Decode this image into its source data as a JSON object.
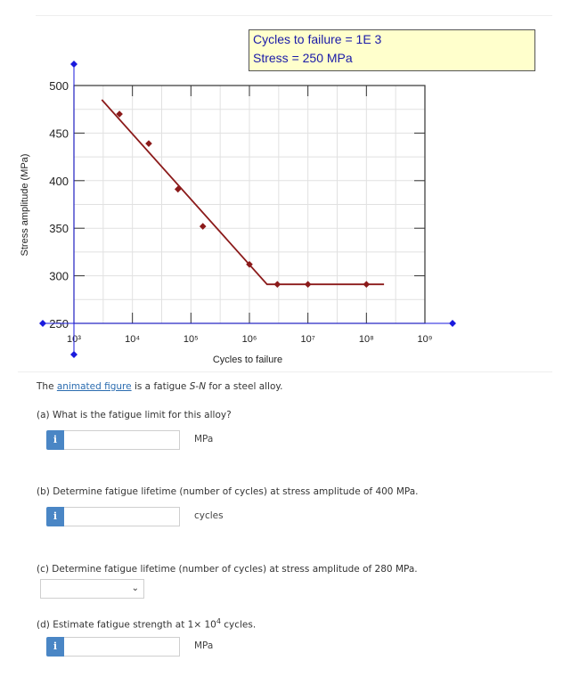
{
  "readout": {
    "cycles_line": "Cycles to failure = 1E 3",
    "stress_line": "Stress = 250 MPa"
  },
  "chart_data": {
    "type": "line",
    "xlabel": "Cycles to failure",
    "ylabel": "Stress amplitude (MPa)",
    "x_scale": "log",
    "xlim": [
      1000,
      1000000000
    ],
    "ylim": [
      250,
      500
    ],
    "x_ticks": [
      {
        "exp": 3,
        "label": "10³"
      },
      {
        "exp": 4,
        "label": "10⁴"
      },
      {
        "exp": 5,
        "label": "10⁵"
      },
      {
        "exp": 6,
        "label": "10⁶"
      },
      {
        "exp": 7,
        "label": "10⁷"
      },
      {
        "exp": 8,
        "label": "10⁸"
      },
      {
        "exp": 9,
        "label": "10⁹"
      }
    ],
    "y_ticks": [
      250,
      300,
      350,
      400,
      450,
      500
    ],
    "grid": true,
    "series": [
      {
        "color": "#8b1a1a",
        "line": [
          [
            3000,
            485
          ],
          [
            2000000,
            291
          ],
          [
            200000000,
            291
          ]
        ],
        "markers": [
          [
            6000,
            470
          ],
          [
            19000,
            439
          ],
          [
            60000,
            391
          ],
          [
            160000,
            352
          ],
          [
            1000000,
            312
          ],
          [
            3000000,
            291
          ],
          [
            10000000,
            291
          ],
          [
            100000000,
            291
          ]
        ]
      }
    ],
    "cursor": {
      "x": 1000,
      "y": 250,
      "color": "#1a1add"
    }
  },
  "questions": {
    "intro_before": "The ",
    "intro_link": "animated figure",
    "intro_mid": " is a fatigue ",
    "intro_sn": "S-N",
    "intro_after": " for a steel alloy.",
    "a_text": "(a) What is the fatigue limit for this alloy?",
    "a_unit": "MPa",
    "b_text": "(b) Determine fatigue lifetime (number of cycles) at stress amplitude of 400 MPa.",
    "b_unit": "cycles",
    "c_text": "(c) Determine fatigue lifetime (number of cycles) at stress amplitude of 280 MPa.",
    "c_value": "",
    "d_text_before": "(d) Estimate fatigue strength at 1× 10",
    "d_exp": "4",
    "d_text_after": " cycles.",
    "d_unit": "MPa",
    "info_glyph": "i"
  }
}
